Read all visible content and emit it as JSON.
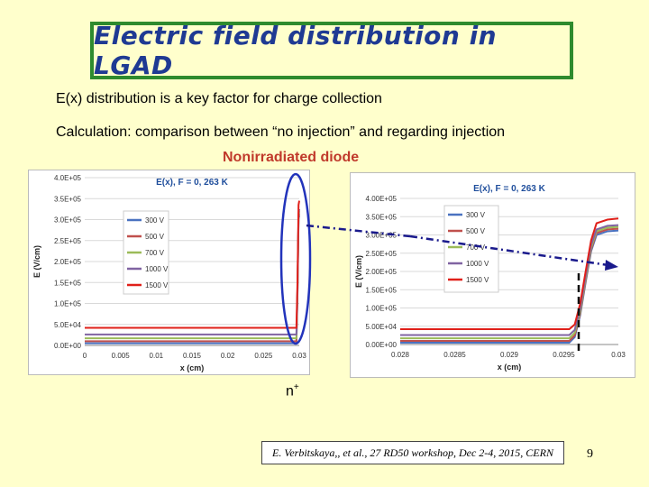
{
  "slide": {
    "title": "Electric field distribution in LGAD",
    "bullet1": "E(x) distribution is a key factor for charge collection",
    "bullet2": "Calculation: comparison between “no injection” and regarding injection",
    "subheading": "Nonirradiated diode",
    "nplus_label": "n",
    "nplus_sup": "+",
    "citation": "E. Verbitskaya,, et al., 27 RD50 workshop, Dec 2-4, 2015, CERN",
    "page_number": "9"
  },
  "colors": {
    "background": "#ffffcc",
    "title_border": "#2e8b2e",
    "title_text": "#1f3a93",
    "subheading": "#c0392b",
    "ellipse": "#2233bb",
    "arrow": "#1a1a8c",
    "series": [
      "#4a72c0",
      "#c0504d",
      "#9bbb59",
      "#8064a2",
      "#e0201a"
    ]
  },
  "chart_data": [
    {
      "type": "line",
      "title": "E(x), F = 0, 263 K",
      "xlabel": "x (cm)",
      "ylabel": "E (V/cm)",
      "xlim": [
        0,
        0.03
      ],
      "ylim": [
        0,
        400000
      ],
      "x_ticks": [
        "0",
        "0.005",
        "0.01",
        "0.015",
        "0.02",
        "0.025",
        "0.03"
      ],
      "y_ticks": [
        "0.0E+00",
        "5.0E+04",
        "1.0E+05",
        "1.5E+05",
        "2.0E+05",
        "2.5E+05",
        "3.0E+05",
        "3.5E+05",
        "4.0E+05"
      ],
      "legend_position": "left",
      "series": [
        {
          "name": "300 V",
          "x": [
            0,
            0.0296,
            0.02975,
            0.0299,
            0.03
          ],
          "values": [
            5000,
            5000,
            120000,
            300000,
            310000
          ]
        },
        {
          "name": "500 V",
          "x": [
            0,
            0.0296,
            0.02975,
            0.0299,
            0.03
          ],
          "values": [
            10000,
            10000,
            125000,
            305000,
            315000
          ]
        },
        {
          "name": "700 V",
          "x": [
            0,
            0.0296,
            0.02975,
            0.0299,
            0.03
          ],
          "values": [
            17000,
            17000,
            130000,
            310000,
            320000
          ]
        },
        {
          "name": "1000 V",
          "x": [
            0,
            0.0296,
            0.02975,
            0.0299,
            0.03
          ],
          "values": [
            26000,
            26000,
            135000,
            315000,
            325000
          ]
        },
        {
          "name": "1500 V",
          "x": [
            0,
            0.0296,
            0.02975,
            0.0299,
            0.03
          ],
          "values": [
            42000,
            42000,
            150000,
            335000,
            345000
          ]
        }
      ]
    },
    {
      "type": "line",
      "title": "E(x), F = 0, 263 K",
      "xlabel": "x (cm)",
      "ylabel": "E (V/cm)",
      "xlim": [
        0.028,
        0.03
      ],
      "ylim": [
        0,
        400000
      ],
      "x_ticks": [
        "0.028",
        "0.0285",
        "0.029",
        "0.0295",
        "0.03"
      ],
      "y_ticks": [
        "0.00E+00",
        "5.00E+04",
        "1.00E+05",
        "1.50E+05",
        "2.00E+05",
        "2.50E+05",
        "3.00E+05",
        "3.50E+05",
        "4.00E+05"
      ],
      "legend_position": "center",
      "series": [
        {
          "name": "300 V",
          "x": [
            0.028,
            0.02955,
            0.0296,
            0.02965,
            0.0297,
            0.02975,
            0.0298,
            0.0299,
            0.03
          ],
          "values": [
            5000,
            5000,
            20000,
            80000,
            170000,
            255000,
            300000,
            310000,
            312000
          ]
        },
        {
          "name": "500 V",
          "x": [
            0.028,
            0.02955,
            0.0296,
            0.02965,
            0.0297,
            0.02975,
            0.0298,
            0.0299,
            0.03
          ],
          "values": [
            10000,
            10000,
            25000,
            85000,
            175000,
            260000,
            305000,
            315000,
            317000
          ]
        },
        {
          "name": "700 V",
          "x": [
            0.028,
            0.02955,
            0.0296,
            0.02965,
            0.0297,
            0.02975,
            0.0298,
            0.0299,
            0.03
          ],
          "values": [
            17000,
            17000,
            32000,
            90000,
            180000,
            265000,
            310000,
            320000,
            322000
          ]
        },
        {
          "name": "1000 V",
          "x": [
            0.028,
            0.02955,
            0.0296,
            0.02965,
            0.0297,
            0.02975,
            0.0298,
            0.0299,
            0.03
          ],
          "values": [
            26000,
            26000,
            40000,
            98000,
            187000,
            272000,
            315000,
            325000,
            327000
          ]
        },
        {
          "name": "1500 V",
          "x": [
            0.028,
            0.02955,
            0.0296,
            0.02965,
            0.0297,
            0.02975,
            0.0298,
            0.0299,
            0.03
          ],
          "values": [
            42000,
            42000,
            55000,
            112000,
            200000,
            285000,
            332000,
            342000,
            345000
          ]
        }
      ]
    }
  ]
}
